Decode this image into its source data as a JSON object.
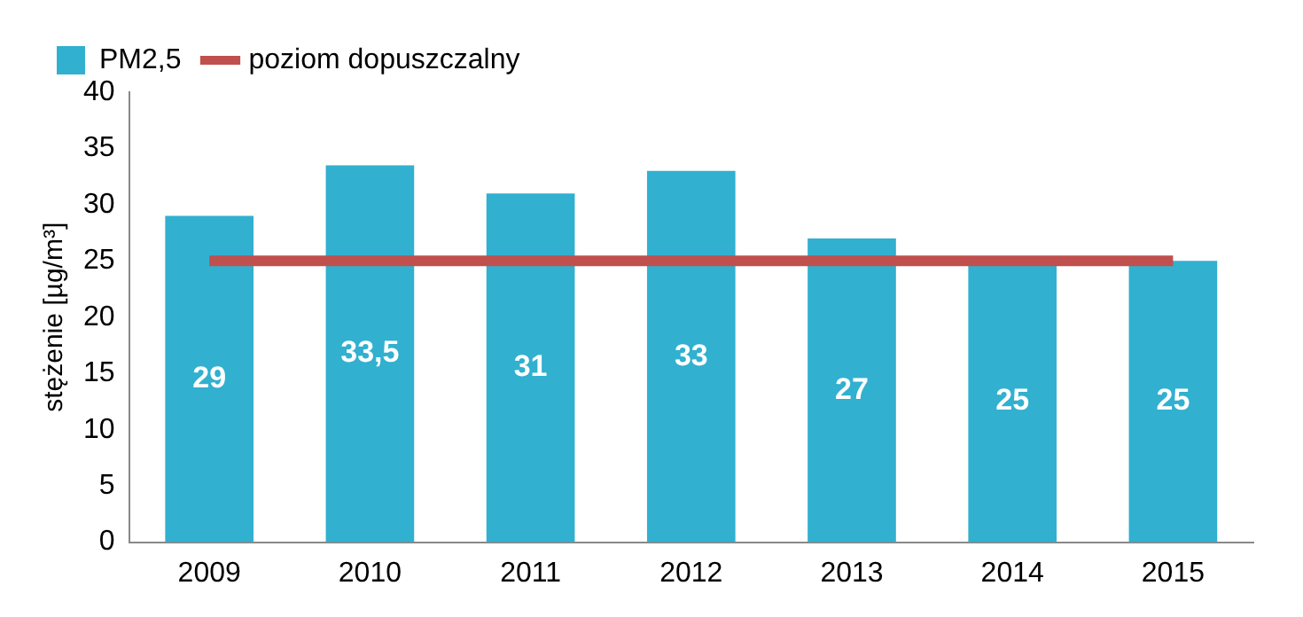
{
  "chart_data": {
    "type": "bar",
    "ylabel": "stężenie [µg/m³]",
    "categories": [
      "2009",
      "2010",
      "2011",
      "2012",
      "2013",
      "2014",
      "2015"
    ],
    "series": [
      {
        "name": "PM2,5",
        "color": "#31b0d0",
        "values": [
          29,
          33.5,
          31,
          33,
          27,
          25,
          25
        ],
        "value_labels": [
          "29",
          "33,5",
          "31",
          "33",
          "27",
          "25",
          "25"
        ]
      },
      {
        "name": "poziom dopuszczalny",
        "type": "line",
        "color": "#c0504d",
        "values": [
          25,
          25,
          25,
          25,
          25,
          25,
          25
        ],
        "marker": "none",
        "line_style": "solid"
      }
    ],
    "ylim": [
      0,
      40
    ],
    "yticks": [
      0,
      5,
      10,
      15,
      20,
      25,
      30,
      35,
      40
    ],
    "grid": false,
    "legend": "top left"
  }
}
